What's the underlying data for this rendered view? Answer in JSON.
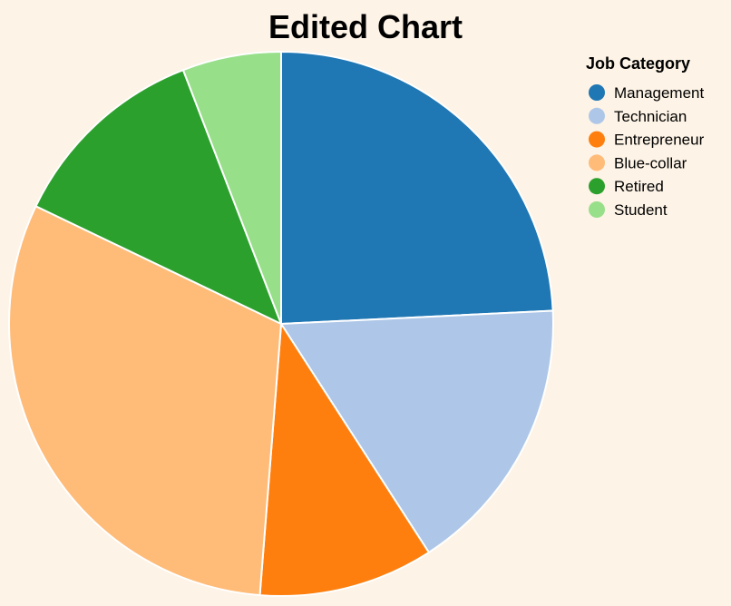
{
  "chart_data": {
    "type": "pie",
    "title": "Edited Chart",
    "legend_title": "Job Category",
    "legend_position": "top-right",
    "categories": [
      "Management",
      "Technician",
      "Entrepreneur",
      "Blue-collar",
      "Retired",
      "Student"
    ],
    "values": [
      25.2,
      17.3,
      10.8,
      32.1,
      12.5,
      6.1
    ],
    "colors": [
      "#1f77b4",
      "#aec7e8",
      "#ff7f0e",
      "#ffbb78",
      "#2ca02c",
      "#98df8a"
    ],
    "slice_border_color": "#ffffff"
  },
  "background_color": "#fdf3e6"
}
